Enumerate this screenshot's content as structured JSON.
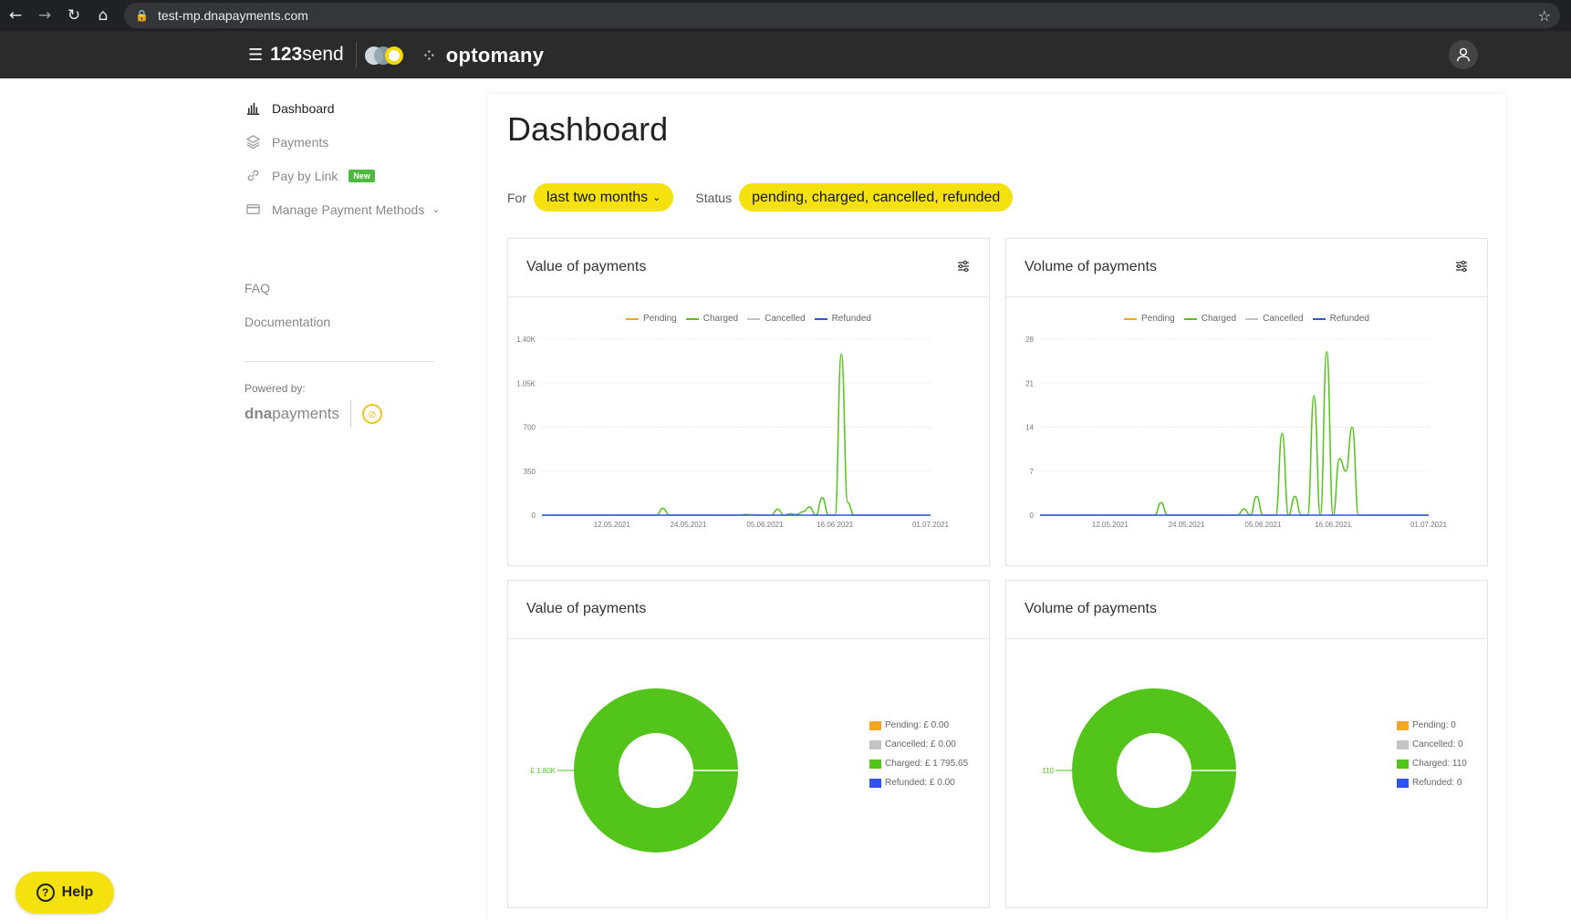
{
  "browser": {
    "url": "test-mp.dnapayments.com",
    "back_icon": "←",
    "forward_icon": "→",
    "reload_icon": "↻",
    "home_icon": "⌂",
    "lock_icon": "🔒",
    "star_icon": "☆"
  },
  "header": {
    "brand_num": "123",
    "brand_word": "send",
    "menu_icon": "☰",
    "partner": "optomany",
    "partner_icon": "⁘"
  },
  "sidebar": {
    "items": [
      {
        "label": "Dashboard"
      },
      {
        "label": "Payments"
      },
      {
        "label": "Pay by Link",
        "badge": "New"
      },
      {
        "label": "Manage Payment Methods",
        "chevron": "⌄"
      }
    ],
    "faq": "FAQ",
    "documentation": "Documentation",
    "powered_by": "Powered by:",
    "dna_bold": "dna",
    "dna_light": "payments"
  },
  "main": {
    "title": "Dashboard",
    "for_label": "For",
    "for_value": "last two months",
    "status_label": "Status",
    "status_value": "pending, charged, cancelled, refunded",
    "caret": "⌄"
  },
  "colors": {
    "pending": "#f5a623",
    "charged": "#52c41a",
    "cancelled": "#c4c4c4",
    "refunded": "#2f54eb",
    "accent": "#f5e10d"
  },
  "legend": [
    "Pending",
    "Charged",
    "Cancelled",
    "Refunded"
  ],
  "chart_data": [
    {
      "type": "line",
      "title": "Value of payments",
      "x_ticks": [
        "12.05.2021",
        "24.05.2021",
        "05.06.2021",
        "16.06.2021",
        "01.07.2021"
      ],
      "y_ticks": [
        "0",
        "350",
        "700",
        "1.05K",
        "1.40K"
      ],
      "ylim": [
        0,
        1400
      ],
      "xlim": [
        "2021-05-01",
        "2021-07-01"
      ],
      "series": [
        {
          "name": "Pending",
          "points": []
        },
        {
          "name": "Charged",
          "points": [
            [
              "2021-05-01",
              0
            ],
            [
              "2021-05-19",
              0
            ],
            [
              "2021-05-20",
              55
            ],
            [
              "2021-05-21",
              0
            ],
            [
              "2021-06-01",
              0
            ],
            [
              "2021-06-02",
              5
            ],
            [
              "2021-06-03",
              3
            ],
            [
              "2021-06-04",
              0
            ],
            [
              "2021-06-06",
              0
            ],
            [
              "2021-06-07",
              48
            ],
            [
              "2021-06-08",
              0
            ],
            [
              "2021-06-09",
              12
            ],
            [
              "2021-06-10",
              5
            ],
            [
              "2021-06-11",
              28
            ],
            [
              "2021-06-12",
              65
            ],
            [
              "2021-06-13",
              0
            ],
            [
              "2021-06-14",
              140
            ],
            [
              "2021-06-15",
              0
            ],
            [
              "2021-06-16",
              0
            ],
            [
              "2021-06-17",
              1280
            ],
            [
              "2021-06-18",
              100
            ],
            [
              "2021-06-19",
              0
            ],
            [
              "2021-07-01",
              0
            ]
          ]
        },
        {
          "name": "Cancelled",
          "points": []
        },
        {
          "name": "Refunded",
          "points": [
            [
              "2021-05-01",
              0
            ],
            [
              "2021-07-01",
              0
            ]
          ]
        }
      ]
    },
    {
      "type": "line",
      "title": "Volume of payments",
      "x_ticks": [
        "12.05.2021",
        "24.05.2021",
        "05.06.2021",
        "16.06.2021",
        "01.07.2021"
      ],
      "y_ticks": [
        "0",
        "7",
        "14",
        "21",
        "28"
      ],
      "ylim": [
        0,
        28
      ],
      "xlim": [
        "2021-05-01",
        "2021-07-01"
      ],
      "series": [
        {
          "name": "Pending",
          "points": []
        },
        {
          "name": "Charged",
          "points": [
            [
              "2021-05-01",
              0
            ],
            [
              "2021-05-19",
              0
            ],
            [
              "2021-05-20",
              2
            ],
            [
              "2021-05-21",
              0
            ],
            [
              "2021-06-01",
              0
            ],
            [
              "2021-06-02",
              1
            ],
            [
              "2021-06-03",
              0
            ],
            [
              "2021-06-04",
              3
            ],
            [
              "2021-06-05",
              0
            ],
            [
              "2021-06-07",
              0
            ],
            [
              "2021-06-08",
              13
            ],
            [
              "2021-06-09",
              0
            ],
            [
              "2021-06-10",
              3
            ],
            [
              "2021-06-11",
              0
            ],
            [
              "2021-06-12",
              0
            ],
            [
              "2021-06-13",
              19
            ],
            [
              "2021-06-14",
              0
            ],
            [
              "2021-06-15",
              26
            ],
            [
              "2021-06-16",
              0
            ],
            [
              "2021-06-17",
              9
            ],
            [
              "2021-06-18",
              7
            ],
            [
              "2021-06-19",
              14
            ],
            [
              "2021-06-20",
              0
            ],
            [
              "2021-07-01",
              0
            ]
          ]
        },
        {
          "name": "Cancelled",
          "points": []
        },
        {
          "name": "Refunded",
          "points": [
            [
              "2021-05-01",
              0
            ],
            [
              "2021-07-01",
              0
            ]
          ]
        }
      ]
    },
    {
      "type": "pie",
      "title": "Value of payments",
      "slices": [
        {
          "name": "Pending",
          "value": 0,
          "label": "Pending: £ 0.00"
        },
        {
          "name": "Cancelled",
          "value": 0,
          "label": "Cancelled: £ 0.00"
        },
        {
          "name": "Charged",
          "value": 1795.65,
          "label": "Charged: £ 1 795.65"
        },
        {
          "name": "Refunded",
          "value": 0,
          "label": "Refunded: £ 0.00"
        }
      ],
      "callout": "£ 1.80K"
    },
    {
      "type": "pie",
      "title": "Volume of payments",
      "slices": [
        {
          "name": "Pending",
          "value": 0,
          "label": "Pending: 0"
        },
        {
          "name": "Cancelled",
          "value": 0,
          "label": "Cancelled: 0"
        },
        {
          "name": "Charged",
          "value": 110,
          "label": "Charged: 110"
        },
        {
          "name": "Refunded",
          "value": 0,
          "label": "Refunded: 0"
        }
      ],
      "callout": "110"
    }
  ],
  "help": {
    "label": "Help",
    "icon": "?"
  }
}
